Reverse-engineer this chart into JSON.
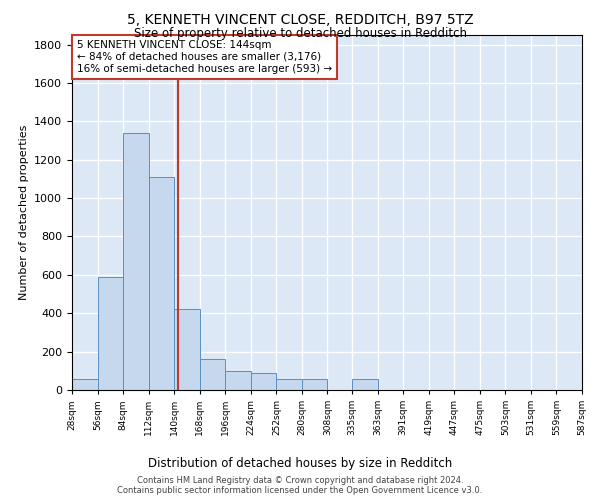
{
  "title": "5, KENNETH VINCENT CLOSE, REDDITCH, B97 5TZ",
  "subtitle": "Size of property relative to detached houses in Redditch",
  "xlabel": "Distribution of detached houses by size in Redditch",
  "ylabel": "Number of detached properties",
  "annotation_line1": "5 KENNETH VINCENT CLOSE: 144sqm",
  "annotation_line2": "← 84% of detached houses are smaller (3,176)",
  "annotation_line3": "16% of semi-detached houses are larger (593) →",
  "bin_edges": [
    28,
    56,
    84,
    112,
    140,
    168,
    196,
    224,
    252,
    280,
    308,
    335,
    363,
    391,
    419,
    447,
    475,
    503,
    531,
    559,
    587
  ],
  "bar_heights": [
    55,
    590,
    1340,
    1110,
    420,
    160,
    100,
    90,
    55,
    55,
    0,
    55,
    0,
    0,
    0,
    0,
    0,
    0,
    0,
    0
  ],
  "bar_color": "#c5d8ee",
  "bar_edge_color": "#5a8fc2",
  "vline_x": 144,
  "vline_color": "#c0392b",
  "ylim": [
    0,
    1850
  ],
  "yticks": [
    0,
    200,
    400,
    600,
    800,
    1000,
    1200,
    1400,
    1600,
    1800
  ],
  "background_color": "#dce8f5",
  "grid_color": "#ffffff",
  "footer_line1": "Contains HM Land Registry data © Crown copyright and database right 2024.",
  "footer_line2": "Contains public sector information licensed under the Open Government Licence v3.0."
}
